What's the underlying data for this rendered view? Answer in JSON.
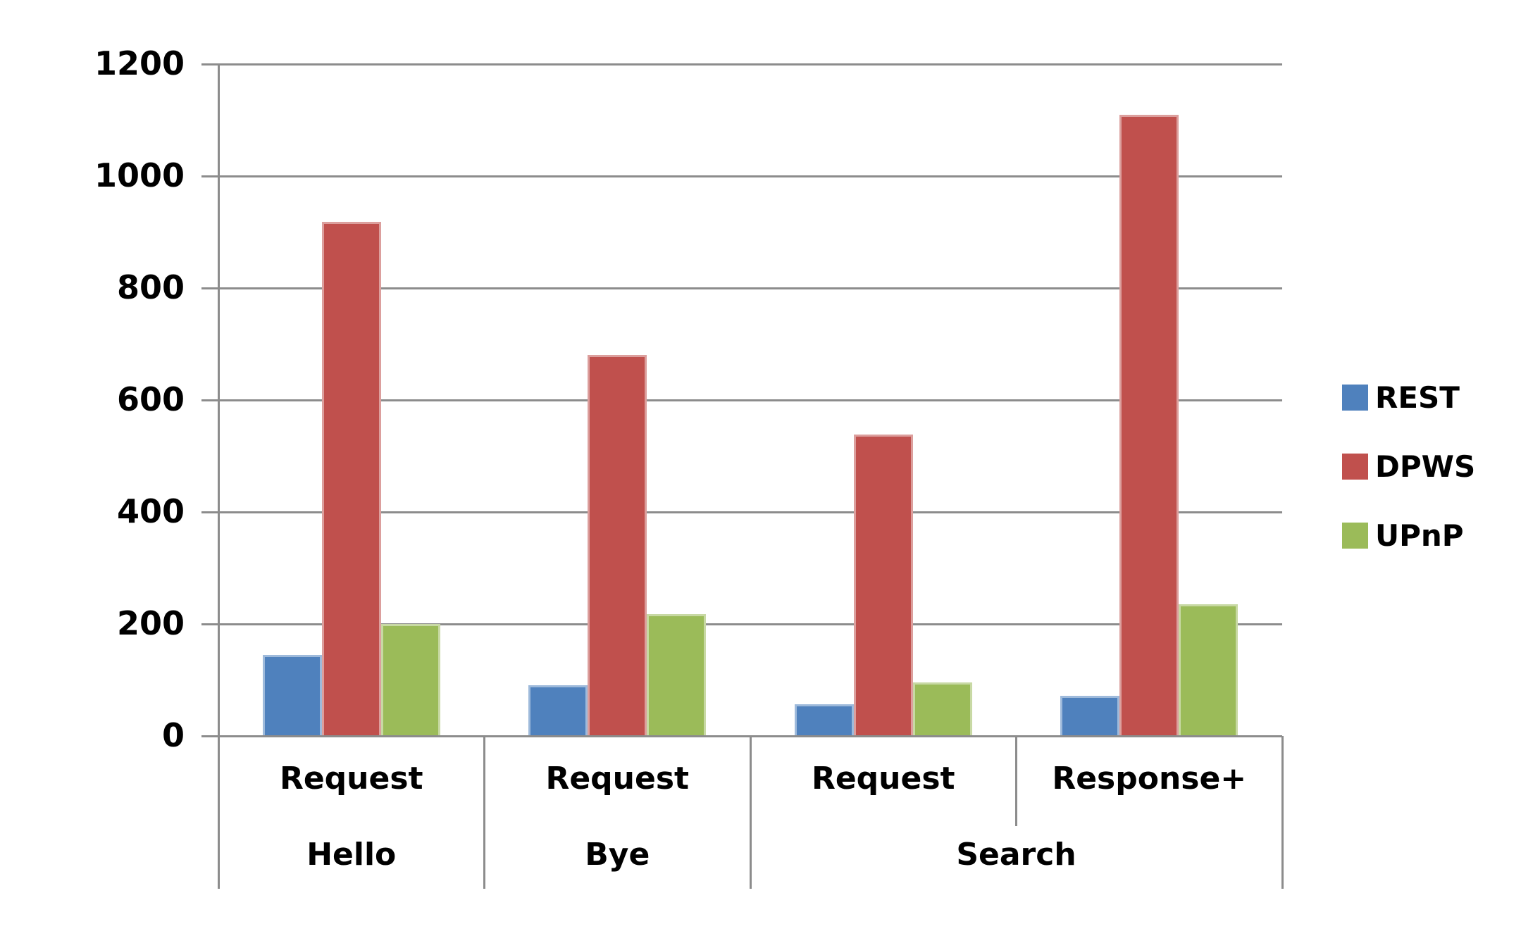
{
  "chart_data": {
    "type": "bar",
    "title": "",
    "xlabel": "",
    "ylabel": "",
    "ylim": [
      0,
      1200
    ],
    "yticks": [
      0,
      200,
      400,
      600,
      800,
      1000,
      1200
    ],
    "grid": true,
    "legend_position": "right",
    "categories": [
      {
        "top": "Request",
        "bottom": "Hello"
      },
      {
        "top": "Request",
        "bottom": "Bye"
      },
      {
        "top": "Request",
        "bottom": "Search"
      },
      {
        "top": "Response+",
        "bottom": "Search"
      }
    ],
    "x_axis_rows": {
      "row1": [
        "Request",
        "Request",
        "Request",
        "Response+"
      ],
      "row2": [
        {
          "label": "Hello",
          "span": 1
        },
        {
          "label": "Bye",
          "span": 1
        },
        {
          "label": "Search",
          "span": 2
        }
      ]
    },
    "series": [
      {
        "name": "REST",
        "color": "#4F81BD",
        "values": [
          145,
          90,
          57,
          72
        ]
      },
      {
        "name": "DPWS",
        "color": "#C0504D",
        "values": [
          918,
          680,
          538,
          1110
        ]
      },
      {
        "name": "UPnP",
        "color": "#9BBB59",
        "values": [
          200,
          218,
          95,
          235
        ]
      }
    ]
  },
  "colors": {
    "gridline": "#8C8C8C",
    "axis": "#8C8C8C",
    "text": "#000000",
    "background": "#FFFFFF"
  }
}
